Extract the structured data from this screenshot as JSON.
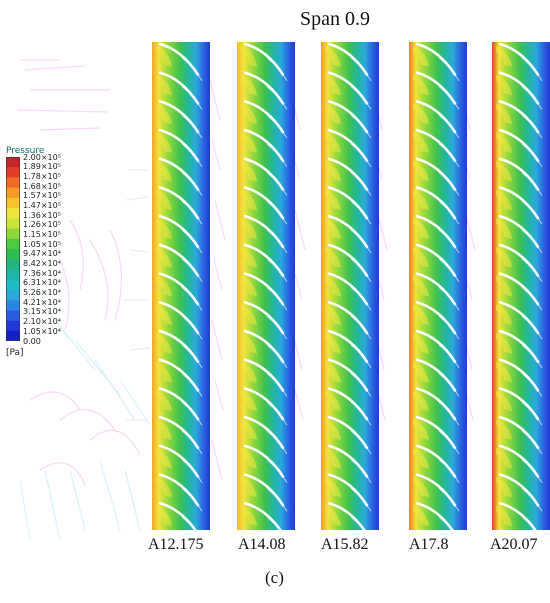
{
  "figure": {
    "title": "Span 0.9",
    "subfigure_label": "(c)"
  },
  "legend": {
    "title": "Pressure",
    "unit": "[Pa]",
    "ticks": [
      "2.00×10⁵",
      "1.89×10⁵",
      "1.78×10⁵",
      "1.68×10⁵",
      "1.57×10⁵",
      "1.47×10⁵",
      "1.36×10⁵",
      "1.26×10⁵",
      "1.15×10⁵",
      "1.05×10⁵",
      "9.47×10⁴",
      "8.42×10⁴",
      "7.36×10⁴",
      "6.31×10⁴",
      "5.26×10⁴",
      "4.21×10⁴",
      "3.15×10⁴",
      "2.10×10⁴",
      "1.05×10⁴",
      "0.00"
    ],
    "colors": [
      "#c0262a",
      "#e0402a",
      "#f06a28",
      "#f59a25",
      "#f7c32a",
      "#f1e43a",
      "#c8e63a",
      "#8fd93d",
      "#4fca3e",
      "#2fbd52",
      "#22b67e",
      "#1fb6a6",
      "#20bcc6",
      "#2aa9dc",
      "#2f86e0",
      "#2a5ee0",
      "#1f3ad6",
      "#1620c8"
    ]
  },
  "panels": [
    {
      "label": "A12.175",
      "leading_color": "#f2a52a"
    },
    {
      "label": "A14.08",
      "leading_color": "#f1b82c"
    },
    {
      "label": "A15.82",
      "leading_color": "#f39a27"
    },
    {
      "label": "A17.8",
      "leading_color": "#ef7a27"
    },
    {
      "label": "A20.07",
      "leading_color": "#e0402a"
    }
  ]
}
